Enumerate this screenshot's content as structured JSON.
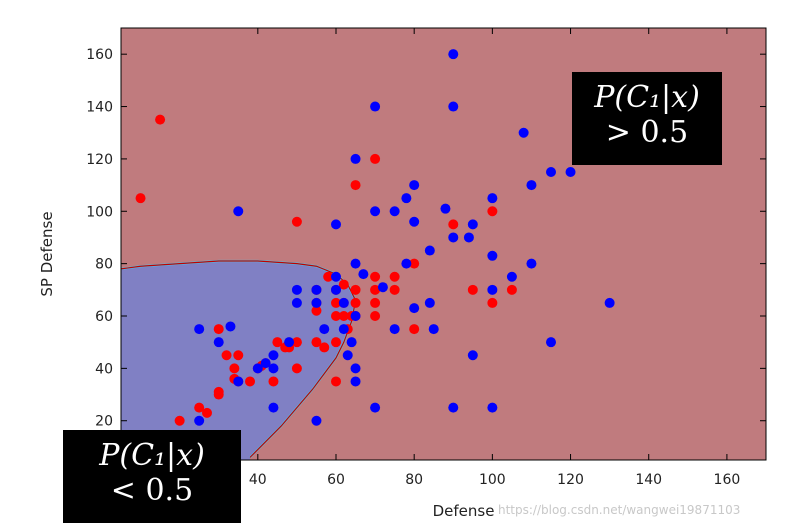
{
  "chart_data": {
    "type": "scatter",
    "title": "",
    "xlabel": "Defense",
    "ylabel": "SP Defense",
    "xlim": [
      5,
      170
    ],
    "ylim": [
      5,
      170
    ],
    "xticks": [
      40,
      60,
      80,
      100,
      120,
      140,
      160
    ],
    "yticks": [
      20,
      40,
      60,
      80,
      100,
      120,
      140,
      160
    ],
    "grid": false,
    "legend": "none",
    "colors": {
      "region_c1": "#c07b7e",
      "region_c2": "#8080c4",
      "boundary": "#c00000",
      "series_red": "#ff0000",
      "series_blue": "#0000ff"
    },
    "boundary_curve": {
      "x": [
        5,
        10,
        20,
        30,
        40,
        50,
        55,
        60,
        63,
        65,
        64,
        62,
        60,
        57,
        54,
        50,
        46,
        42,
        38
      ],
      "y": [
        78,
        79,
        80,
        81,
        81,
        80,
        79,
        76,
        72,
        66,
        58,
        50,
        44,
        38,
        32,
        25,
        18,
        12,
        6
      ]
    },
    "series": [
      {
        "color": "red",
        "points": [
          [
            10,
            105
          ],
          [
            15,
            135
          ],
          [
            20,
            20
          ],
          [
            25,
            25
          ],
          [
            27,
            23
          ],
          [
            30,
            30
          ],
          [
            30,
            31
          ],
          [
            30,
            55
          ],
          [
            32,
            45
          ],
          [
            34,
            40
          ],
          [
            34,
            36
          ],
          [
            35,
            45
          ],
          [
            35,
            35
          ],
          [
            38,
            35
          ],
          [
            40,
            40
          ],
          [
            41,
            41
          ],
          [
            42,
            42
          ],
          [
            44,
            35
          ],
          [
            45,
            50
          ],
          [
            47,
            48
          ],
          [
            48,
            48
          ],
          [
            50,
            50
          ],
          [
            50,
            40
          ],
          [
            50,
            96
          ],
          [
            55,
            50
          ],
          [
            55,
            70
          ],
          [
            55,
            65
          ],
          [
            55,
            62
          ],
          [
            57,
            48
          ],
          [
            58,
            75
          ],
          [
            60,
            35
          ],
          [
            60,
            50
          ],
          [
            60,
            70
          ],
          [
            60,
            65
          ],
          [
            60,
            60
          ],
          [
            62,
            72
          ],
          [
            62,
            60
          ],
          [
            62,
            65
          ],
          [
            63,
            55
          ],
          [
            64,
            60
          ],
          [
            65,
            110
          ],
          [
            65,
            65
          ],
          [
            65,
            70
          ],
          [
            65,
            60
          ],
          [
            70,
            120
          ],
          [
            70,
            75
          ],
          [
            70,
            70
          ],
          [
            70,
            65
          ],
          [
            70,
            60
          ],
          [
            75,
            75
          ],
          [
            75,
            70
          ],
          [
            80,
            80
          ],
          [
            80,
            55
          ],
          [
            90,
            95
          ],
          [
            95,
            70
          ],
          [
            100,
            65
          ],
          [
            100,
            100
          ],
          [
            105,
            70
          ]
        ]
      },
      {
        "color": "blue",
        "points": [
          [
            25,
            20
          ],
          [
            25,
            55
          ],
          [
            30,
            50
          ],
          [
            33,
            56
          ],
          [
            35,
            100
          ],
          [
            35,
            35
          ],
          [
            40,
            40
          ],
          [
            42,
            42
          ],
          [
            44,
            25
          ],
          [
            44,
            40
          ],
          [
            44,
            45
          ],
          [
            48,
            50
          ],
          [
            50,
            70
          ],
          [
            50,
            65
          ],
          [
            55,
            20
          ],
          [
            55,
            70
          ],
          [
            55,
            65
          ],
          [
            57,
            55
          ],
          [
            60,
            95
          ],
          [
            60,
            75
          ],
          [
            60,
            70
          ],
          [
            62,
            65
          ],
          [
            62,
            55
          ],
          [
            63,
            45
          ],
          [
            64,
            50
          ],
          [
            65,
            120
          ],
          [
            65,
            80
          ],
          [
            65,
            60
          ],
          [
            65,
            40
          ],
          [
            65,
            35
          ],
          [
            67,
            76
          ],
          [
            70,
            140
          ],
          [
            70,
            100
          ],
          [
            70,
            25
          ],
          [
            72,
            71
          ],
          [
            75,
            100
          ],
          [
            75,
            55
          ],
          [
            78,
            80
          ],
          [
            78,
            105
          ],
          [
            80,
            110
          ],
          [
            80,
            96
          ],
          [
            80,
            63
          ],
          [
            84,
            85
          ],
          [
            84,
            65
          ],
          [
            85,
            55
          ],
          [
            88,
            101
          ],
          [
            90,
            160
          ],
          [
            90,
            140
          ],
          [
            90,
            90
          ],
          [
            90,
            25
          ],
          [
            94,
            90
          ],
          [
            95,
            95
          ],
          [
            95,
            45
          ],
          [
            100,
            105
          ],
          [
            100,
            83
          ],
          [
            100,
            70
          ],
          [
            100,
            25
          ],
          [
            105,
            75
          ],
          [
            108,
            130
          ],
          [
            110,
            110
          ],
          [
            110,
            80
          ],
          [
            115,
            115
          ],
          [
            115,
            50
          ],
          [
            120,
            115
          ],
          [
            130,
            65
          ]
        ]
      }
    ],
    "annotations": [
      {
        "line1": "P(C₁|x)",
        "line2": "> 0.5",
        "position": "top-right"
      },
      {
        "line1": "P(C₁|x)",
        "line2": "< 0.5",
        "position": "bottom-left"
      }
    ]
  },
  "watermark": "https://blog.csdn.net/wangwei19871103"
}
